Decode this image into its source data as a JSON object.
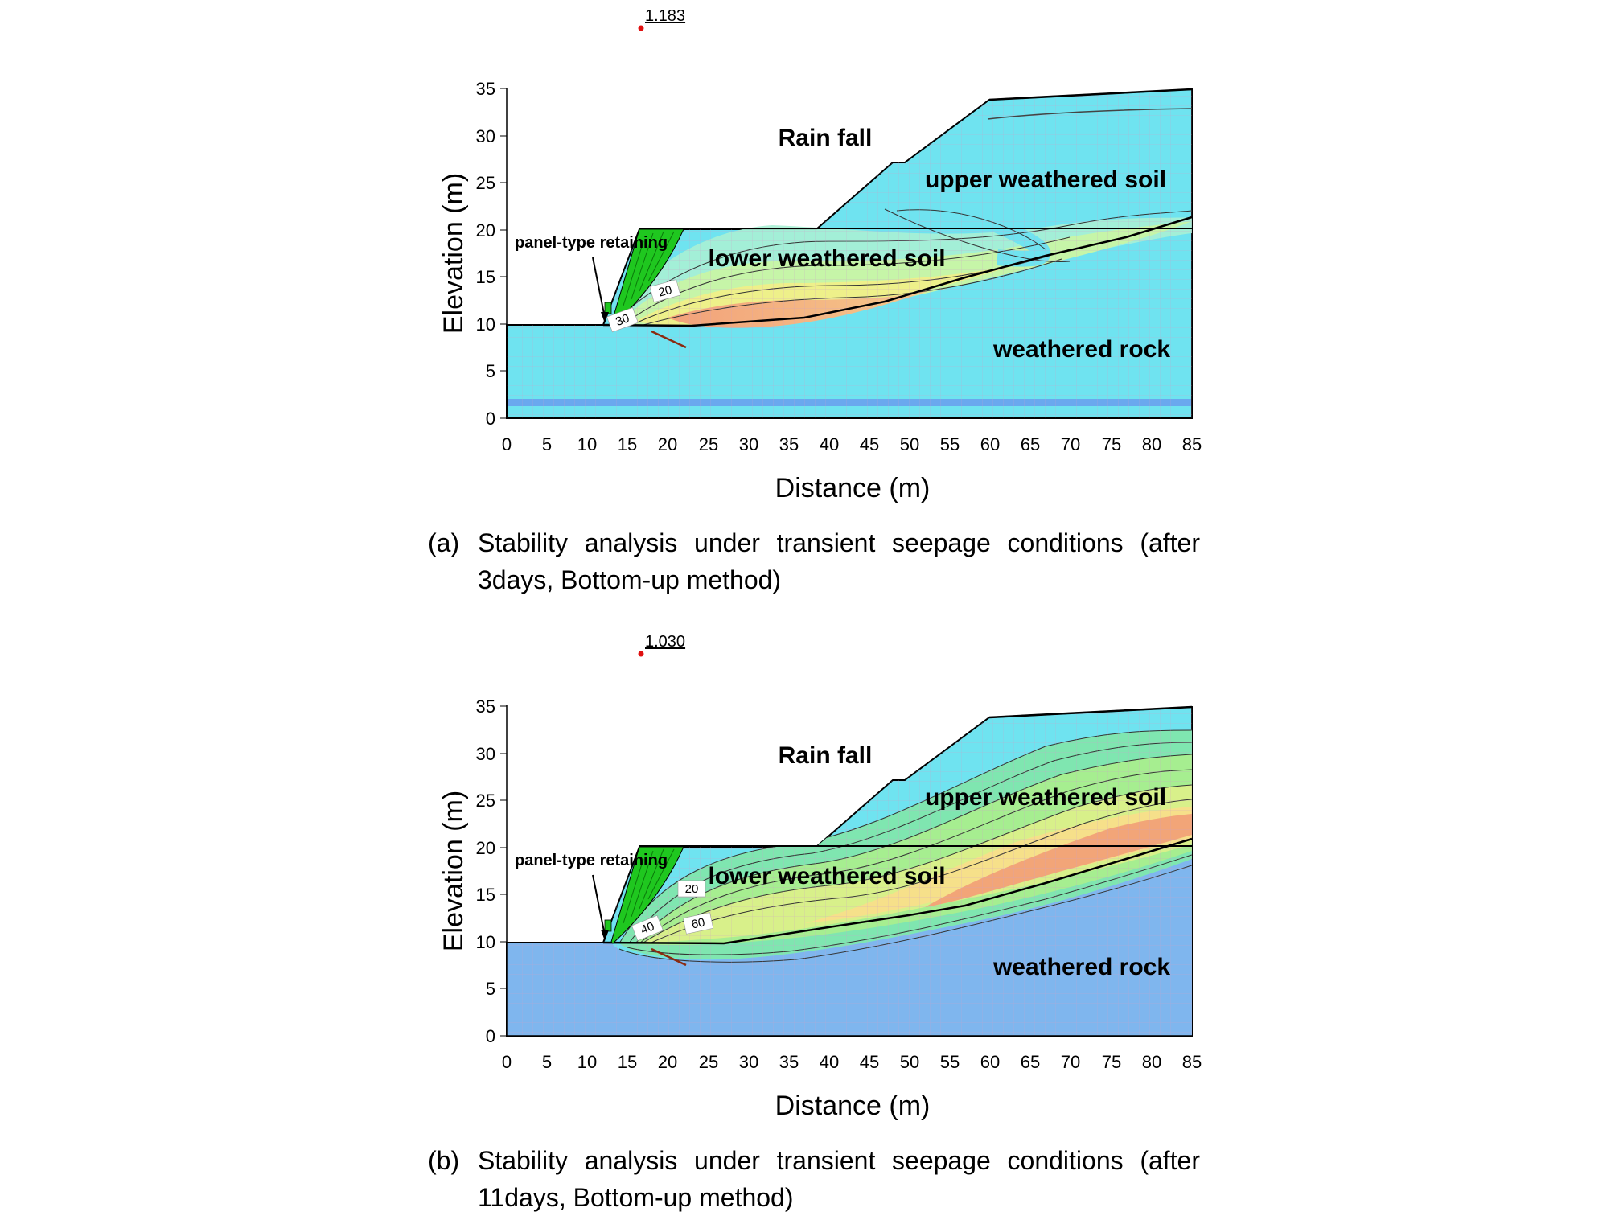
{
  "panels": [
    {
      "id": "a",
      "factor_of_safety": "1.183",
      "y_axis_label": "Elevation (m)",
      "x_axis_label": "Distance (m)",
      "x_ticks": [
        "0",
        "5",
        "10",
        "15",
        "20",
        "25",
        "30",
        "35",
        "40",
        "45",
        "50",
        "55",
        "60",
        "65",
        "70",
        "75",
        "80",
        "85"
      ],
      "y_ticks": [
        "0",
        "5",
        "10",
        "15",
        "20",
        "25",
        "30",
        "35"
      ],
      "labels": {
        "rain": "Rain fall",
        "upper": "upper weathered soil",
        "lower": "lower weathered soil",
        "rock": "weathered rock",
        "retaining": "panel-type retaining"
      },
      "contour_labels": [
        "20",
        "30"
      ],
      "caption_tag": "(a)",
      "caption_text": "Stability analysis under transient seepage conditions (after 3days, Bottom-up method)"
    },
    {
      "id": "b",
      "factor_of_safety": "1.030",
      "y_axis_label": "Elevation (m)",
      "x_axis_label": "Distance (m)",
      "x_ticks": [
        "0",
        "5",
        "10",
        "15",
        "20",
        "25",
        "30",
        "35",
        "40",
        "45",
        "50",
        "55",
        "60",
        "65",
        "70",
        "75",
        "80",
        "85"
      ],
      "y_ticks": [
        "0",
        "5",
        "10",
        "15",
        "20",
        "25",
        "30",
        "35"
      ],
      "labels": {
        "rain": "Rain fall",
        "upper": "upper weathered soil",
        "lower": "lower weathered soil",
        "rock": "weathered rock",
        "retaining": "panel-type retaining"
      },
      "contour_labels": [
        "20",
        "40",
        "60"
      ],
      "caption_tag": "(b)",
      "caption_text": "Stability analysis under transient seepage conditions (after 11days, Bottom-up method)"
    }
  ],
  "colors": {
    "cyan": "#6fe3f0",
    "rock_b": "#7fb6ee",
    "retaining": "#1fc71f"
  }
}
